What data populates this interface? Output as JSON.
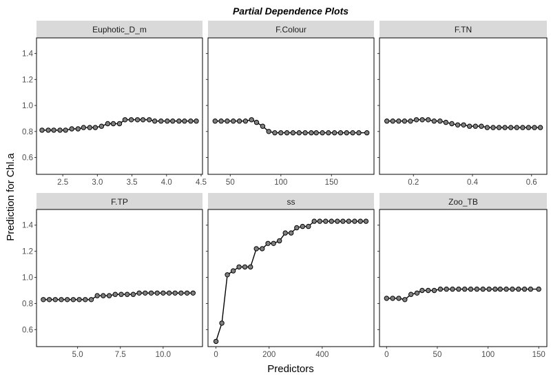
{
  "chart_data": {
    "type": "line",
    "title": "Partial Dependence Plots",
    "xlabel": "Predictors",
    "ylabel": "Prediction for Chl.a",
    "ylim": [
      0.47,
      1.52
    ],
    "y_ticks": [
      0.6,
      0.8,
      1.0,
      1.2,
      1.4
    ],
    "y_tick_labels": [
      "0.6",
      "0.8",
      "1.0",
      "1.2",
      "1.4"
    ],
    "colors": {
      "point_fill": "#808080",
      "line": "#000000",
      "strip_bg": "#d9d9d9"
    },
    "panels": [
      {
        "name": "Euphotic_D_m",
        "xlim": [
          2.12,
          4.52
        ],
        "x_ticks": [
          2.5,
          3.0,
          3.5,
          4.0,
          4.5
        ],
        "x_tick_labels": [
          "2.5",
          "3.0",
          "3.5",
          "4.0",
          "4.5"
        ],
        "x": [
          2.2,
          2.29,
          2.37,
          2.46,
          2.54,
          2.63,
          2.72,
          2.8,
          2.89,
          2.97,
          3.06,
          3.15,
          3.23,
          3.32,
          3.4,
          3.49,
          3.58,
          3.66,
          3.75,
          3.83,
          3.92,
          4.01,
          4.09,
          4.18,
          4.26,
          4.35,
          4.43
        ],
        "y": [
          0.81,
          0.81,
          0.81,
          0.81,
          0.81,
          0.82,
          0.82,
          0.83,
          0.83,
          0.83,
          0.84,
          0.86,
          0.86,
          0.86,
          0.89,
          0.89,
          0.89,
          0.89,
          0.89,
          0.88,
          0.88,
          0.88,
          0.88,
          0.88,
          0.88,
          0.88,
          0.88
        ]
      },
      {
        "name": "F.Colour",
        "xlim": [
          28,
          192
        ],
        "x_ticks": [
          50,
          100,
          150
        ],
        "x_tick_labels": [
          "50",
          "100",
          "150"
        ],
        "x": [
          35,
          41,
          47,
          53,
          59,
          65,
          71,
          76,
          82,
          88,
          94,
          100,
          106,
          112,
          118,
          124,
          130,
          135,
          141,
          147,
          153,
          159,
          165,
          171,
          177,
          185
        ],
        "y": [
          0.88,
          0.88,
          0.88,
          0.88,
          0.88,
          0.88,
          0.89,
          0.87,
          0.84,
          0.8,
          0.79,
          0.79,
          0.79,
          0.79,
          0.79,
          0.79,
          0.79,
          0.79,
          0.79,
          0.79,
          0.79,
          0.79,
          0.79,
          0.79,
          0.79,
          0.79
        ]
      },
      {
        "name": "F.TN",
        "xlim": [
          0.085,
          0.652
        ],
        "x_ticks": [
          0.2,
          0.4,
          0.6
        ],
        "x_tick_labels": [
          "0.2",
          "0.4",
          "0.6"
        ],
        "x": [
          0.11,
          0.13,
          0.15,
          0.17,
          0.19,
          0.21,
          0.23,
          0.25,
          0.27,
          0.29,
          0.31,
          0.33,
          0.35,
          0.37,
          0.39,
          0.41,
          0.43,
          0.45,
          0.47,
          0.49,
          0.51,
          0.53,
          0.55,
          0.57,
          0.59,
          0.61,
          0.63
        ],
        "y": [
          0.88,
          0.88,
          0.88,
          0.88,
          0.88,
          0.89,
          0.89,
          0.89,
          0.88,
          0.88,
          0.87,
          0.86,
          0.85,
          0.85,
          0.84,
          0.84,
          0.84,
          0.83,
          0.83,
          0.83,
          0.83,
          0.83,
          0.83,
          0.83,
          0.83,
          0.83,
          0.83
        ]
      },
      {
        "name": "F.TP",
        "xlim": [
          2.6,
          12.3
        ],
        "x_ticks": [
          5.0,
          7.5,
          10.0
        ],
        "x_tick_labels": [
          "5.0",
          "7.5",
          "10.0"
        ],
        "x": [
          3.0,
          3.35,
          3.7,
          4.05,
          4.4,
          4.75,
          5.1,
          5.45,
          5.8,
          6.15,
          6.5,
          6.85,
          7.2,
          7.55,
          7.9,
          8.25,
          8.6,
          8.95,
          9.3,
          9.65,
          10.0,
          10.35,
          10.7,
          11.05,
          11.4,
          11.75
        ],
        "y": [
          0.83,
          0.83,
          0.83,
          0.83,
          0.83,
          0.83,
          0.83,
          0.83,
          0.83,
          0.86,
          0.86,
          0.86,
          0.87,
          0.87,
          0.87,
          0.87,
          0.88,
          0.88,
          0.88,
          0.88,
          0.88,
          0.88,
          0.88,
          0.88,
          0.88,
          0.88
        ]
      },
      {
        "name": "ss",
        "xlim": [
          -30,
          595
        ],
        "x_ticks": [
          0,
          200,
          400
        ],
        "x_tick_labels": [
          "0",
          "200",
          "400"
        ],
        "x": [
          0,
          22,
          43,
          65,
          87,
          109,
          130,
          152,
          174,
          196,
          217,
          239,
          261,
          283,
          304,
          326,
          348,
          370,
          391,
          413,
          435,
          457,
          478,
          500,
          522,
          544,
          565
        ],
        "y": [
          0.51,
          0.65,
          1.02,
          1.05,
          1.08,
          1.08,
          1.08,
          1.22,
          1.22,
          1.26,
          1.26,
          1.28,
          1.34,
          1.34,
          1.38,
          1.39,
          1.39,
          1.43,
          1.43,
          1.43,
          1.43,
          1.43,
          1.43,
          1.43,
          1.43,
          1.43,
          1.43
        ]
      },
      {
        "name": "Zoo_TB",
        "xlim": [
          -7,
          158
        ],
        "x_ticks": [
          0,
          50,
          100,
          150
        ],
        "x_tick_labels": [
          "0",
          "50",
          "100",
          "150"
        ],
        "x": [
          0,
          6,
          12,
          18,
          24,
          30,
          35,
          41,
          47,
          53,
          59,
          65,
          71,
          77,
          83,
          89,
          95,
          101,
          107,
          112,
          118,
          124,
          130,
          136,
          142,
          150
        ],
        "y": [
          0.84,
          0.84,
          0.84,
          0.83,
          0.87,
          0.88,
          0.9,
          0.9,
          0.9,
          0.91,
          0.91,
          0.91,
          0.91,
          0.91,
          0.91,
          0.91,
          0.91,
          0.91,
          0.91,
          0.91,
          0.91,
          0.91,
          0.91,
          0.91,
          0.91,
          0.91
        ]
      }
    ]
  }
}
